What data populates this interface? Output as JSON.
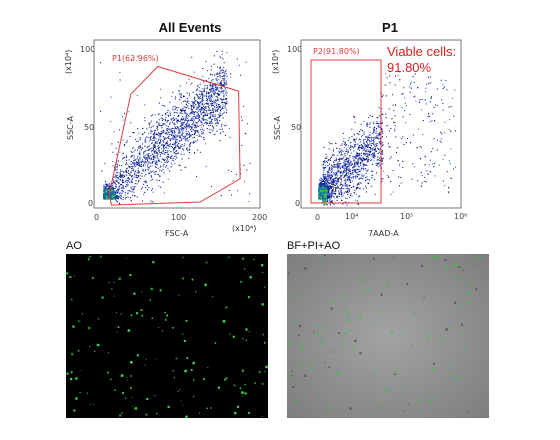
{
  "chart_data": [
    {
      "type": "scatter",
      "title": "All Events",
      "xlabel": "FSC-A",
      "ylabel": "SSC-A",
      "x_multiplier": "(x10⁴)",
      "y_multiplier": "(x10⁴)",
      "xlim": [
        0,
        200
      ],
      "ylim": [
        0,
        100
      ],
      "xticks": [
        "0",
        "100",
        "200"
      ],
      "yticks": [
        "0",
        "50",
        "100"
      ],
      "gate": {
        "label": "P1(63.96%)",
        "polygon": [
          [
            12,
            5
          ],
          [
            40,
            70
          ],
          [
            75,
            88
          ],
          [
            180,
            72
          ],
          [
            182,
            15
          ],
          [
            130,
            0
          ],
          [
            15,
            -2
          ]
        ]
      },
      "scale": "linear"
    },
    {
      "type": "scatter",
      "title": "P1",
      "xlabel": "7AAD-A",
      "ylabel": "SSC-A",
      "y_multiplier": "(x10⁴)",
      "xscale": "log",
      "xticks": [
        "0",
        "10⁴",
        "10⁵",
        "10⁶"
      ],
      "yticks": [
        "0",
        "50",
        "100"
      ],
      "ylim": [
        0,
        100
      ],
      "gate": {
        "label": "P2(91.80%)",
        "x_range": [
          "0",
          "10⁵"
        ],
        "y_range": [
          0,
          92
        ]
      },
      "annotation": {
        "line1": "Viable cells:",
        "line2": "91.80%"
      }
    }
  ],
  "images": [
    {
      "title": "AO"
    },
    {
      "title": "BF+PI+AO"
    }
  ],
  "colors": {
    "gate": "#e23b3b",
    "dot_dense": "#0a1a8a",
    "dot_hot": "#40c040",
    "ao_bg": "#000000",
    "ao_dot": "#3fd04a",
    "bf_bg": "#8f8f8f"
  }
}
